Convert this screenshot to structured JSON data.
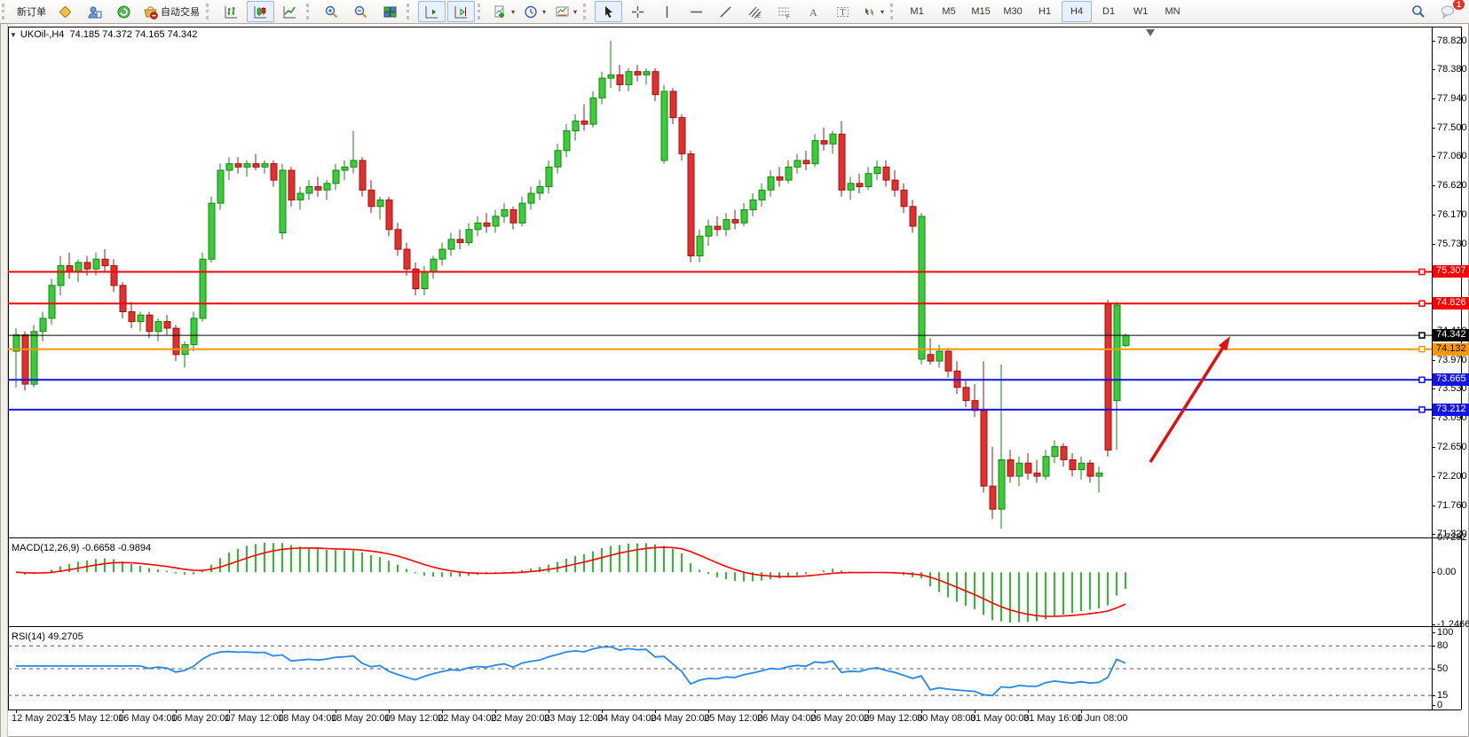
{
  "toolbar": {
    "new_order_label": "新订单",
    "autotrading_label": "自动交易",
    "timeframes": [
      "M1",
      "M5",
      "M15",
      "M30",
      "H1",
      "H4",
      "D1",
      "W1",
      "MN"
    ],
    "active_timeframe": "H4",
    "notification_count": "1",
    "icon_names": [
      "new-order-button",
      "market-icon",
      "profile-chart-icon",
      "signals-icon",
      "autotrading-button",
      "bars-chart-button",
      "candles-chart-button",
      "line-chart-button",
      "zoom-in-button",
      "zoom-out-button",
      "tile-windows-button",
      "auto-scroll-button",
      "chart-shift-button",
      "indicators-button",
      "periods-button",
      "templates-button",
      "cursor-button",
      "crosshair-button",
      "vertical-line-button",
      "horizontal-line-button",
      "trendline-button",
      "equidistant-channel-button",
      "fibonacci-button",
      "text-button",
      "text-label-button",
      "arrows-button",
      "search-button",
      "chat-button"
    ]
  },
  "header": {
    "collapse_glyph": "▼",
    "title": "UKOil-,H4",
    "ohlc_text": "74.185 74.372 74.165 74.342"
  },
  "indicators": {
    "macd": {
      "label": "MACD(12,26,9)",
      "values": "-0.6658 -0.9894",
      "axis_labels": [
        "0.7292",
        "0.00",
        "-1.2466"
      ],
      "axis_max": 0.7292,
      "axis_min": -1.2466
    },
    "rsi": {
      "label": "RSI(14)",
      "value": "49.2705",
      "axis_labels": [
        "100",
        "80",
        "50",
        "15",
        "0"
      ],
      "levels": [
        80,
        50,
        15
      ]
    }
  },
  "chart_data": {
    "type": "candlestick",
    "symbol": "UKOil-",
    "timeframe": "H4",
    "last_bar": {
      "open": 74.185,
      "high": 74.372,
      "low": 74.165,
      "close": 74.342
    },
    "current_price": 74.342,
    "y_axis": {
      "max": 79.02,
      "min": 71.27,
      "ticks": [
        78.82,
        78.38,
        77.94,
        77.5,
        77.06,
        76.62,
        76.17,
        75.73,
        74.41,
        73.97,
        73.53,
        73.09,
        72.65,
        72.2,
        71.76,
        71.32
      ]
    },
    "x_axis_labels": [
      "12 May 2023",
      "15 May 12:00",
      "16 May 04:00",
      "16 May 20:00",
      "17 May 12:00",
      "18 May 04:00",
      "18 May 20:00",
      "19 May 12:00",
      "22 May 04:00",
      "22 May 20:00",
      "23 May 12:00",
      "24 May 04:00",
      "24 May 20:00",
      "25 May 12:00",
      "26 May 04:00",
      "26 May 20:00",
      "29 May 12:00",
      "30 May 08:00",
      "31 May 00:00",
      "31 May 16:00",
      "1 Jun 08:00"
    ],
    "bars_per_label": 6,
    "hlines": [
      {
        "price": 75.307,
        "color": "#FF0000",
        "width": 2,
        "label_bg": "#FF0000",
        "label_fg": "#FFFFFF"
      },
      {
        "price": 74.826,
        "color": "#FF0000",
        "width": 2,
        "label_bg": "#FF0000",
        "label_fg": "#FFFFFF"
      },
      {
        "price": 74.342,
        "color": "#000000",
        "width": 1,
        "label_bg": "#000000",
        "label_fg": "#FFFFFF"
      },
      {
        "price": 74.132,
        "color": "#FF9800",
        "width": 2,
        "label_bg": "#FF9800",
        "label_fg": "#000000"
      },
      {
        "price": 73.665,
        "color": "#1414E6",
        "width": 2,
        "label_bg": "#1414E6",
        "label_fg": "#FFFFFF"
      },
      {
        "price": 73.212,
        "color": "#1414E6",
        "width": 2,
        "label_bg": "#1414E6",
        "label_fg": "#FFFFFF"
      }
    ],
    "candles": [
      [
        74.1,
        74.45,
        73.55,
        74.35
      ],
      [
        74.35,
        74.4,
        73.5,
        73.6
      ],
      [
        73.6,
        74.5,
        73.55,
        74.4
      ],
      [
        74.4,
        74.7,
        74.25,
        74.6
      ],
      [
        74.6,
        75.2,
        74.5,
        75.1
      ],
      [
        75.1,
        75.55,
        74.95,
        75.4
      ],
      [
        75.4,
        75.6,
        75.2,
        75.3
      ],
      [
        75.3,
        75.5,
        75.15,
        75.45
      ],
      [
        75.45,
        75.55,
        75.25,
        75.35
      ],
      [
        75.35,
        75.6,
        75.25,
        75.5
      ],
      [
        75.5,
        75.65,
        75.3,
        75.4
      ],
      [
        75.4,
        75.5,
        75.0,
        75.1
      ],
      [
        75.1,
        75.15,
        74.6,
        74.7
      ],
      [
        74.7,
        74.85,
        74.45,
        74.55
      ],
      [
        74.55,
        74.7,
        74.4,
        74.65
      ],
      [
        74.65,
        74.7,
        74.3,
        74.4
      ],
      [
        74.4,
        74.6,
        74.25,
        74.55
      ],
      [
        74.55,
        74.65,
        74.35,
        74.45
      ],
      [
        74.45,
        74.5,
        73.95,
        74.05
      ],
      [
        74.05,
        74.25,
        73.85,
        74.2
      ],
      [
        74.2,
        74.7,
        74.1,
        74.6
      ],
      [
        74.6,
        75.6,
        74.55,
        75.5
      ],
      [
        75.5,
        76.45,
        75.45,
        76.35
      ],
      [
        76.35,
        76.95,
        76.25,
        76.85
      ],
      [
        76.85,
        77.05,
        76.7,
        76.95
      ],
      [
        76.95,
        77.05,
        76.8,
        76.9
      ],
      [
        76.9,
        77.0,
        76.75,
        76.95
      ],
      [
        76.95,
        77.1,
        76.85,
        76.9
      ],
      [
        76.9,
        77.0,
        76.8,
        76.95
      ],
      [
        76.95,
        77.0,
        76.6,
        76.7
      ],
      [
        75.9,
        76.95,
        75.8,
        76.85
      ],
      [
        76.85,
        76.9,
        76.3,
        76.4
      ],
      [
        76.4,
        76.6,
        76.25,
        76.5
      ],
      [
        76.5,
        76.7,
        76.4,
        76.6
      ],
      [
        76.6,
        76.75,
        76.45,
        76.55
      ],
      [
        76.55,
        76.7,
        76.4,
        76.65
      ],
      [
        76.65,
        76.95,
        76.55,
        76.85
      ],
      [
        76.85,
        77.0,
        76.7,
        76.9
      ],
      [
        76.9,
        77.45,
        76.8,
        77.0
      ],
      [
        77.0,
        77.05,
        76.45,
        76.55
      ],
      [
        76.55,
        76.7,
        76.2,
        76.3
      ],
      [
        76.3,
        76.45,
        76.1,
        76.4
      ],
      [
        76.4,
        76.45,
        75.85,
        75.95
      ],
      [
        75.95,
        76.05,
        75.55,
        75.65
      ],
      [
        75.65,
        75.75,
        75.25,
        75.35
      ],
      [
        75.35,
        75.45,
        74.95,
        75.05
      ],
      [
        75.05,
        75.4,
        74.95,
        75.3
      ],
      [
        75.3,
        75.55,
        75.2,
        75.5
      ],
      [
        75.5,
        75.75,
        75.4,
        75.65
      ],
      [
        75.65,
        75.9,
        75.55,
        75.8
      ],
      [
        75.8,
        75.95,
        75.65,
        75.75
      ],
      [
        75.75,
        76.05,
        75.7,
        75.95
      ],
      [
        75.95,
        76.15,
        75.85,
        76.05
      ],
      [
        76.05,
        76.2,
        75.9,
        76.0
      ],
      [
        76.0,
        76.25,
        75.9,
        76.15
      ],
      [
        76.15,
        76.35,
        76.05,
        76.25
      ],
      [
        76.25,
        76.3,
        75.95,
        76.05
      ],
      [
        76.05,
        76.45,
        76.0,
        76.35
      ],
      [
        76.35,
        76.6,
        76.25,
        76.5
      ],
      [
        76.5,
        76.7,
        76.4,
        76.6
      ],
      [
        76.6,
        77.0,
        76.5,
        76.9
      ],
      [
        76.9,
        77.25,
        76.8,
        77.15
      ],
      [
        77.15,
        77.55,
        77.05,
        77.45
      ],
      [
        77.45,
        77.7,
        77.3,
        77.6
      ],
      [
        77.6,
        77.85,
        77.45,
        77.55
      ],
      [
        77.55,
        78.05,
        77.5,
        77.95
      ],
      [
        77.95,
        78.35,
        77.85,
        78.25
      ],
      [
        78.25,
        78.82,
        78.1,
        78.3
      ],
      [
        78.3,
        78.45,
        78.05,
        78.15
      ],
      [
        78.15,
        78.4,
        78.05,
        78.35
      ],
      [
        78.35,
        78.45,
        78.2,
        78.3
      ],
      [
        78.3,
        78.4,
        78.15,
        78.35
      ],
      [
        78.35,
        78.4,
        77.9,
        78.0
      ],
      [
        77.0,
        78.15,
        76.95,
        78.05
      ],
      [
        78.05,
        78.1,
        77.55,
        77.65
      ],
      [
        77.65,
        77.7,
        77.0,
        77.1
      ],
      [
        77.1,
        77.15,
        75.45,
        75.55
      ],
      [
        75.55,
        75.95,
        75.45,
        75.85
      ],
      [
        75.85,
        76.1,
        75.7,
        76.0
      ],
      [
        76.0,
        76.15,
        75.85,
        75.95
      ],
      [
        75.95,
        76.2,
        75.85,
        76.1
      ],
      [
        76.1,
        76.25,
        75.95,
        76.05
      ],
      [
        76.05,
        76.35,
        76.0,
        76.25
      ],
      [
        76.25,
        76.5,
        76.15,
        76.4
      ],
      [
        76.4,
        76.65,
        76.3,
        76.55
      ],
      [
        76.55,
        76.85,
        76.45,
        76.75
      ],
      [
        76.75,
        76.9,
        76.6,
        76.7
      ],
      [
        76.7,
        77.0,
        76.65,
        76.9
      ],
      [
        76.9,
        77.1,
        76.8,
        77.0
      ],
      [
        77.0,
        77.15,
        76.85,
        76.95
      ],
      [
        76.95,
        77.4,
        76.9,
        77.3
      ],
      [
        77.3,
        77.5,
        77.15,
        77.25
      ],
      [
        77.25,
        77.45,
        77.1,
        77.4
      ],
      [
        77.4,
        77.6,
        76.45,
        76.55
      ],
      [
        76.55,
        76.75,
        76.4,
        76.65
      ],
      [
        76.65,
        76.8,
        76.5,
        76.6
      ],
      [
        76.6,
        76.9,
        76.55,
        76.8
      ],
      [
        76.8,
        77.0,
        76.7,
        76.9
      ],
      [
        76.9,
        77.0,
        76.6,
        76.7
      ],
      [
        76.7,
        76.85,
        76.45,
        76.55
      ],
      [
        76.55,
        76.65,
        76.2,
        76.3
      ],
      [
        76.3,
        76.4,
        75.9,
        76.0
      ],
      [
        73.98,
        76.2,
        73.9,
        76.15
      ],
      [
        74.05,
        74.3,
        73.9,
        73.95
      ],
      [
        73.95,
        74.2,
        73.85,
        74.1
      ],
      [
        74.1,
        74.15,
        73.7,
        73.8
      ],
      [
        73.8,
        73.95,
        73.45,
        73.55
      ],
      [
        73.55,
        73.65,
        73.25,
        73.35
      ],
      [
        73.35,
        73.6,
        73.1,
        73.2
      ],
      [
        73.2,
        73.95,
        71.95,
        72.05
      ],
      [
        72.05,
        72.65,
        71.55,
        71.7
      ],
      [
        71.7,
        73.9,
        71.4,
        72.45
      ],
      [
        72.45,
        72.6,
        72.1,
        72.2
      ],
      [
        72.2,
        72.5,
        72.05,
        72.4
      ],
      [
        72.4,
        72.55,
        72.15,
        72.25
      ],
      [
        72.25,
        72.45,
        72.1,
        72.2
      ],
      [
        72.2,
        72.6,
        72.15,
        72.5
      ],
      [
        72.5,
        72.75,
        72.4,
        72.65
      ],
      [
        72.65,
        72.7,
        72.35,
        72.45
      ],
      [
        72.45,
        72.55,
        72.2,
        72.3
      ],
      [
        72.3,
        72.5,
        72.15,
        72.4
      ],
      [
        72.4,
        72.45,
        72.1,
        72.2
      ],
      [
        72.2,
        72.35,
        71.95,
        72.25
      ],
      [
        74.83,
        74.88,
        72.5,
        72.6
      ],
      [
        73.35,
        74.85,
        72.6,
        74.8
      ],
      [
        74.185,
        74.372,
        74.165,
        74.342
      ]
    ],
    "colors": {
      "bull": "#3BCB3B",
      "bull_border": "#128812",
      "bear": "#E03030",
      "bear_border": "#A01010",
      "macd_hist": "#2EBD2E",
      "macd_signal": "#FF0000",
      "rsi_line": "#2688E8"
    },
    "annotation_arrow": {
      "from": [
        1287,
        490
      ],
      "to": [
        1377,
        348
      ],
      "color": "#E01010"
    }
  }
}
